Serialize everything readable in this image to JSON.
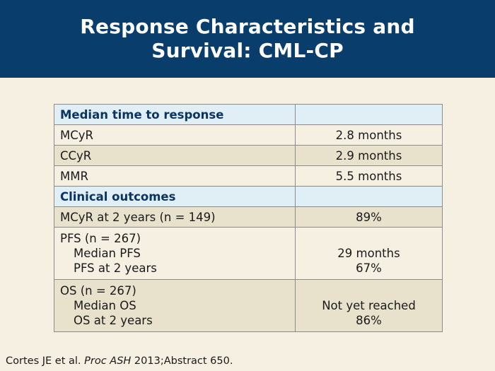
{
  "title": {
    "line1": "Response Characteristics and",
    "line2": "Survival: CML-CP"
  },
  "table": {
    "section1": {
      "label": "Median time to response",
      "value": ""
    },
    "mcyr": {
      "label": "MCyR",
      "value": "2.8 months"
    },
    "ccyr": {
      "label": "CCyR",
      "value": "2.9 months"
    },
    "mmr": {
      "label": "MMR",
      "value": "5.5 months"
    },
    "section2": {
      "label": "Clinical outcomes",
      "value": ""
    },
    "mcyr2": {
      "label": "MCyR at 2 years (n = 149)",
      "value": "89%"
    },
    "pfs": {
      "label": "PFS (n = 267)",
      "sub1_label": "Median PFS",
      "sub1_value": "29 months",
      "sub2_label": "PFS at 2 years",
      "sub2_value": "67%"
    },
    "os": {
      "label": "OS (n = 267)",
      "sub1_label": "Median OS",
      "sub1_value": "Not yet reached",
      "sub2_label": "OS at 2 years",
      "sub2_value": "86%"
    }
  },
  "citation": {
    "authors": "Cortes JE et al. ",
    "journal": "Proc ASH",
    "rest": " 2013;Abstract 650."
  }
}
